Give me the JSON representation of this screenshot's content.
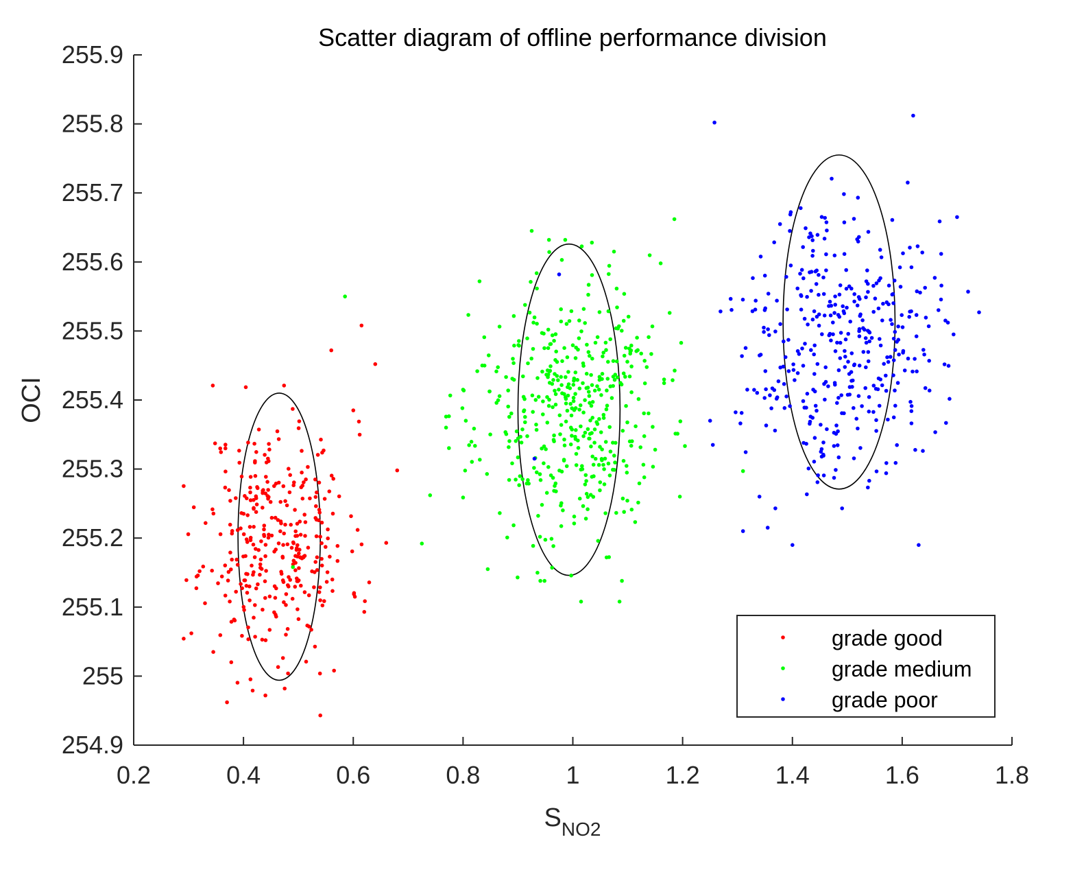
{
  "chart_data": {
    "type": "scatter",
    "title": "Scatter diagram of offline performance division",
    "xlabel": "S",
    "xlabel_subscript": "NO2",
    "ylabel": "OCI",
    "xlim": [
      0.2,
      1.8
    ],
    "ylim": [
      254.9,
      255.9
    ],
    "xticks": [
      "0.2",
      "0.4",
      "0.6",
      "0.8",
      "1",
      "1.2",
      "1.4",
      "1.6",
      "1.8"
    ],
    "yticks": [
      "254.9",
      "255",
      "255.1",
      "255.2",
      "255.3",
      "255.4",
      "255.5",
      "255.6",
      "255.7",
      "255.8",
      "255.9"
    ],
    "grid": false,
    "legend_position": "bottom-right",
    "series": [
      {
        "name": "grade good",
        "color": "#ff0000",
        "center": [
          0.46,
          255.2
        ],
        "spread": [
          0.065,
          0.085
        ],
        "count": 330,
        "seed": 11,
        "points": [
          [
            0.305,
            255.062
          ],
          [
            0.37,
            254.962
          ],
          [
            0.44,
            254.972
          ],
          [
            0.475,
            254.982
          ],
          [
            0.54,
            254.943
          ],
          [
            0.615,
            255.508
          ],
          [
            0.64,
            255.452
          ],
          [
            0.56,
            255.472
          ],
          [
            0.68,
            255.298
          ],
          [
            0.66,
            255.193
          ],
          [
            0.62,
            255.093
          ],
          [
            0.32,
            255.152
          ],
          [
            0.345,
            255.035
          ],
          [
            0.565,
            255.008
          ],
          [
            0.6,
            255.385
          ]
        ],
        "ellipse": {
          "cx": 0.465,
          "cy": 255.202,
          "rx": 0.075,
          "ry": 0.208
        }
      },
      {
        "name": "grade medium",
        "color": "#00ff00",
        "center": [
          0.99,
          255.385
        ],
        "spread": [
          0.085,
          0.095
        ],
        "count": 440,
        "seed": 23,
        "points": [
          [
            0.585,
            255.55
          ],
          [
            0.74,
            255.262
          ],
          [
            0.725,
            255.192
          ],
          [
            0.8,
            255.415
          ],
          [
            0.845,
            255.155
          ],
          [
            1.015,
            255.108
          ],
          [
            1.085,
            255.108
          ],
          [
            1.185,
            255.662
          ],
          [
            1.195,
            255.26
          ],
          [
            1.31,
            255.297
          ],
          [
            1.16,
            255.598
          ],
          [
            0.925,
            255.645
          ],
          [
            1.075,
            255.615
          ],
          [
            0.83,
            255.572
          ],
          [
            0.49,
            255.158
          ],
          [
            0.805,
            255.37
          ]
        ],
        "ellipse": {
          "cx": 0.993,
          "cy": 255.386,
          "rx": 0.093,
          "ry": 0.24
        }
      },
      {
        "name": "grade poor",
        "color": "#0000ff",
        "center": [
          1.49,
          255.49
        ],
        "spread": [
          0.085,
          0.095
        ],
        "count": 380,
        "seed": 37,
        "points": [
          [
            1.258,
            255.802
          ],
          [
            1.62,
            255.812
          ],
          [
            1.31,
            255.21
          ],
          [
            1.355,
            255.215
          ],
          [
            1.4,
            255.19
          ],
          [
            1.63,
            255.19
          ],
          [
            1.72,
            255.557
          ],
          [
            1.74,
            255.527
          ],
          [
            1.7,
            255.665
          ],
          [
            1.25,
            255.37
          ],
          [
            1.255,
            255.335
          ],
          [
            1.34,
            255.26
          ],
          [
            1.54,
            255.283
          ],
          [
            0.975,
            255.582
          ],
          [
            0.93,
            255.315
          ],
          [
            1.61,
            255.715
          ]
        ],
        "ellipse": {
          "cx": 1.485,
          "cy": 255.513,
          "rx": 0.102,
          "ry": 0.242
        }
      }
    ]
  }
}
